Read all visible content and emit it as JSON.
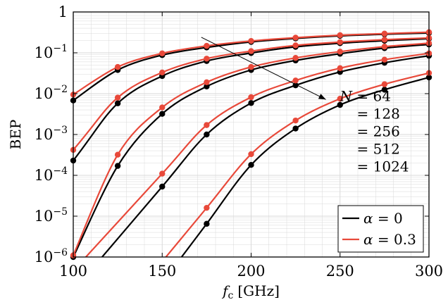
{
  "chart_data": {
    "type": "line",
    "title": "",
    "xlabel": "f",
    "xlabel_sub": "c",
    "xlabel_unit": "[GHz]",
    "ylabel": "BEP",
    "xlim": [
      100,
      300
    ],
    "ylim": [
      1e-06,
      1
    ],
    "y_scale": "log",
    "grid": true,
    "x_ticks": [
      {
        "value": 100,
        "label": "100"
      },
      {
        "value": 150,
        "label": "150"
      },
      {
        "value": 200,
        "label": "200"
      },
      {
        "value": 250,
        "label": "250"
      },
      {
        "value": 300,
        "label": "300"
      }
    ],
    "y_ticks": [
      {
        "value": 1e-06,
        "base": "10",
        "exp": "−6"
      },
      {
        "value": 1e-05,
        "base": "10",
        "exp": "−5"
      },
      {
        "value": 0.0001,
        "base": "10",
        "exp": "−4"
      },
      {
        "value": 0.001,
        "base": "10",
        "exp": "−3"
      },
      {
        "value": 0.01,
        "base": "10",
        "exp": "−2"
      },
      {
        "value": 0.1,
        "base": "10",
        "exp": "−1"
      },
      {
        "value": 1,
        "base": "1",
        "exp": ""
      }
    ],
    "colors": {
      "alpha0": "#000000",
      "alpha03": "#e8493a",
      "grid": "#d9d9d9"
    },
    "x": [
      100,
      125,
      150,
      175,
      200,
      225,
      250,
      275,
      300
    ],
    "series": [
      {
        "group": "alpha0",
        "N": 64,
        "values": [
          0.0068,
          0.038,
          0.088,
          0.135,
          0.185,
          0.225,
          0.26,
          0.285,
          0.305
        ]
      },
      {
        "group": "alpha0",
        "N": 128,
        "values": [
          0.00023,
          0.0058,
          0.027,
          0.063,
          0.099,
          0.14,
          0.172,
          0.198,
          0.222
        ]
      },
      {
        "group": "alpha0",
        "N": 256,
        "values": [
          1e-06,
          0.00017,
          0.0032,
          0.015,
          0.038,
          0.065,
          0.095,
          0.13,
          0.16
        ]
      },
      {
        "group": "alpha0",
        "N": 512,
        "values": [
          null,
          null,
          5.3e-05,
          0.001,
          0.0059,
          0.016,
          0.034,
          0.057,
          0.085
        ]
      },
      {
        "group": "alpha0",
        "N": 1024,
        "values": [
          null,
          null,
          null,
          6.5e-06,
          0.00018,
          0.0014,
          0.0053,
          0.0125,
          0.025
        ]
      },
      {
        "group": "alpha03",
        "N": 64,
        "values": [
          0.0095,
          0.045,
          0.097,
          0.148,
          0.195,
          0.235,
          0.27,
          0.295,
          0.32
        ]
      },
      {
        "group": "alpha03",
        "N": 128,
        "values": [
          0.00042,
          0.008,
          0.033,
          0.072,
          0.11,
          0.152,
          0.183,
          0.21,
          0.232
        ]
      },
      {
        "group": "alpha03",
        "N": 256,
        "values": [
          1.1e-06,
          0.00032,
          0.0046,
          0.019,
          0.045,
          0.075,
          0.107,
          0.142,
          0.172
        ]
      },
      {
        "group": "alpha03",
        "N": 512,
        "values": [
          null,
          null,
          0.00011,
          0.0017,
          0.0082,
          0.021,
          0.042,
          0.068,
          0.097
        ]
      },
      {
        "group": "alpha03",
        "N": 1024,
        "values": [
          null,
          null,
          null,
          1.6e-05,
          0.00033,
          0.0022,
          0.0075,
          0.017,
          0.032
        ]
      }
    ],
    "annotation": {
      "lines": [
        "N = 64",
        "= 128",
        "= 256",
        "= 512",
        "= 1024"
      ],
      "var": "N",
      "arrow_from": [
        172,
        0.24
      ],
      "arrow_to": [
        242,
        0.0072
      ]
    },
    "legend": {
      "position": "bottom-right",
      "entries": [
        {
          "group": "alpha0",
          "label": "α = 0"
        },
        {
          "group": "alpha03",
          "label": "α = 0.3"
        }
      ]
    }
  }
}
